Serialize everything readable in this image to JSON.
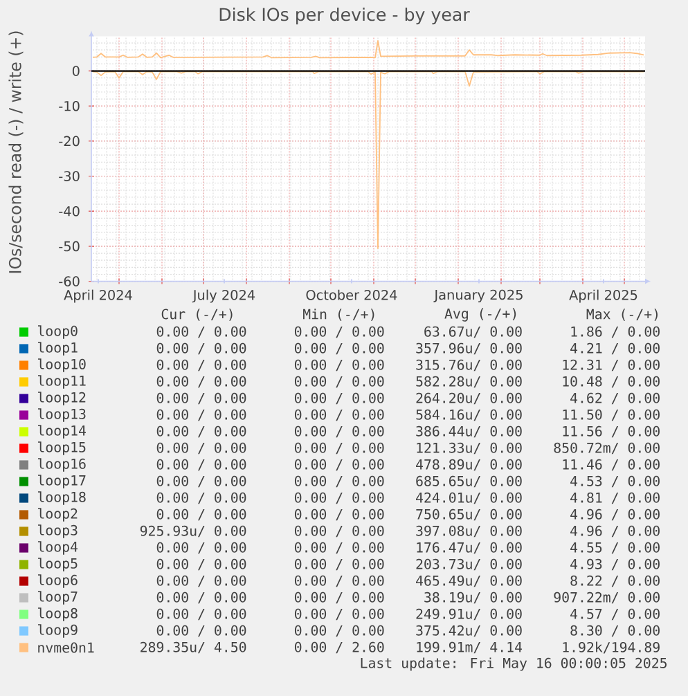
{
  "chart_data": {
    "type": "line",
    "title": "Disk IOs per device - by year",
    "ylabel": "IOs/second read (-) / write (+)",
    "xlim": [
      "2024-04-11",
      "2025-05-16"
    ],
    "ylim": [
      -60,
      9.9
    ],
    "yticks": [
      -60,
      -50,
      -40,
      -30,
      -20,
      -10,
      0
    ],
    "xticks": [
      {
        "value": "2024-04-16",
        "label": "April 2024"
      },
      {
        "value": "2024-05-01",
        "label": null
      },
      {
        "value": "2024-06-01",
        "label": null
      },
      {
        "value": "2024-07-01",
        "label": null
      },
      {
        "value": "2024-07-16",
        "label": "July 2024"
      },
      {
        "value": "2024-08-01",
        "label": null
      },
      {
        "value": "2024-09-01",
        "label": null
      },
      {
        "value": "2024-10-01",
        "label": null
      },
      {
        "value": "2024-10-16",
        "label": "October 2024"
      },
      {
        "value": "2024-11-01",
        "label": null
      },
      {
        "value": "2024-12-01",
        "label": null
      },
      {
        "value": "2025-01-01",
        "label": null
      },
      {
        "value": "2025-01-16",
        "label": "January 2025"
      },
      {
        "value": "2025-02-01",
        "label": null
      },
      {
        "value": "2025-03-01",
        "label": null
      },
      {
        "value": "2025-04-01",
        "label": null
      },
      {
        "value": "2025-04-16",
        "label": "April 2025"
      },
      {
        "value": "2025-05-01",
        "label": null
      }
    ],
    "grid": true,
    "legend": "bottom",
    "series": [
      {
        "name": "loop0",
        "color": "#00cc00"
      },
      {
        "name": "loop1",
        "color": "#0066b3"
      },
      {
        "name": "loop10",
        "color": "#ff8000"
      },
      {
        "name": "loop11",
        "color": "#ffcc00"
      },
      {
        "name": "loop12",
        "color": "#330099"
      },
      {
        "name": "loop13",
        "color": "#990099"
      },
      {
        "name": "loop14",
        "color": "#ccff00"
      },
      {
        "name": "loop15",
        "color": "#ff0000"
      },
      {
        "name": "loop16",
        "color": "#808080"
      },
      {
        "name": "loop17",
        "color": "#008f00"
      },
      {
        "name": "loop18",
        "color": "#00487d"
      },
      {
        "name": "loop2",
        "color": "#b35a00"
      },
      {
        "name": "loop3",
        "color": "#b38f00"
      },
      {
        "name": "loop4",
        "color": "#6b006b"
      },
      {
        "name": "loop5",
        "color": "#8fb300"
      },
      {
        "name": "loop6",
        "color": "#b30000"
      },
      {
        "name": "loop7",
        "color": "#bebebe"
      },
      {
        "name": "loop8",
        "color": "#80ff80"
      },
      {
        "name": "loop9",
        "color": "#80c9ff"
      },
      {
        "name": "nvme0n1",
        "color": "#ffc080",
        "x": [
          "2024-04-12",
          "2024-04-15",
          "2024-04-18",
          "2024-04-21",
          "2024-05-01",
          "2024-05-04",
          "2024-05-07",
          "2024-05-15",
          "2024-05-18",
          "2024-05-21",
          "2024-05-25",
          "2024-05-28",
          "2024-05-31",
          "2024-06-06",
          "2024-06-09",
          "2024-06-25",
          "2024-08-13",
          "2024-08-16",
          "2024-08-19",
          "2024-09-17",
          "2024-09-20",
          "2024-09-23",
          "2024-10-30",
          "2024-11-02",
          "2024-11-04",
          "2024-11-06",
          "2024-12-01",
          "2025-01-06",
          "2025-01-09",
          "2025-01-12",
          "2025-01-25",
          "2025-01-30",
          "2025-02-11",
          "2025-03-01",
          "2025-03-03",
          "2025-03-06",
          "2025-03-31",
          "2025-04-12",
          "2025-04-20",
          "2025-05-05",
          "2025-05-10",
          "2025-05-15"
        ],
        "values": [
          3.9,
          4.0,
          5.0,
          4.0,
          4.0,
          4.5,
          3.9,
          4.0,
          4.8,
          3.9,
          4.0,
          5.1,
          3.8,
          4.5,
          3.9,
          3.9,
          4.0,
          4.4,
          3.8,
          3.9,
          4.2,
          3.8,
          3.9,
          3.8,
          8.6,
          4.2,
          4.3,
          4.3,
          6.0,
          4.6,
          4.6,
          4.4,
          4.6,
          4.5,
          4.9,
          4.4,
          4.5,
          4.7,
          5.1,
          5.2,
          5.0,
          4.6
        ]
      },
      {
        "color": "#ffc080",
        "x": [
          "2024-04-12",
          "2024-04-15",
          "2024-04-18",
          "2024-04-21",
          "2024-04-28",
          "2024-05-01",
          "2024-05-04",
          "2024-05-15",
          "2024-05-18",
          "2024-05-21",
          "2024-05-25",
          "2024-05-28",
          "2024-05-31",
          "2024-06-12",
          "2024-06-15",
          "2024-06-18",
          "2024-06-25",
          "2024-06-27",
          "2024-06-30",
          "2024-09-18",
          "2024-09-19",
          "2024-09-22",
          "2024-10-28",
          "2024-10-30",
          "2024-11-02",
          "2024-11-04",
          "2024-11-06",
          "2024-11-09",
          "2024-11-12",
          "2024-12-13",
          "2024-12-14",
          "2024-12-17",
          "2025-01-06",
          "2025-01-09",
          "2025-01-12",
          "2025-02-27",
          "2025-03-01",
          "2025-03-04",
          "2025-03-27",
          "2025-03-29",
          "2025-04-01",
          "2025-05-15"
        ],
        "values": [
          -0.2,
          -0.3,
          -1.3,
          -0.3,
          -0.2,
          -2.0,
          -0.2,
          -0.2,
          -1.0,
          -0.2,
          -0.3,
          -2.4,
          -0.2,
          -0.2,
          -0.6,
          -0.2,
          -0.2,
          -0.8,
          -0.2,
          -0.2,
          -0.7,
          -0.2,
          -0.2,
          -0.9,
          -0.3,
          -50.6,
          -0.4,
          -0.8,
          -0.2,
          -0.2,
          -0.7,
          -0.2,
          -0.2,
          -4.3,
          -0.3,
          -0.2,
          -0.8,
          -0.2,
          -0.2,
          -0.6,
          -0.2,
          -0.2
        ]
      }
    ],
    "ref_lines": [
      {
        "axis": "y",
        "value": 0,
        "color": "#000000"
      }
    ],
    "annotations": [
      "Cur (-/+)",
      "Min (-/+)",
      "Avg (-/+)",
      "Max (-/+)",
      "0.00 / 0.00",
      "0.00 / 0.00",
      "63.67u/ 0.00",
      "1.86 / 0.00",
      "0.00 / 0.00",
      "0.00 / 0.00",
      "357.96u/ 0.00",
      "4.21 / 0.00",
      "0.00 / 0.00",
      "0.00 / 0.00",
      "315.76u/ 0.00",
      "12.31 / 0.00",
      "0.00 / 0.00",
      "0.00 / 0.00",
      "582.28u/ 0.00",
      "10.48 / 0.00",
      "0.00 / 0.00",
      "0.00 / 0.00",
      "264.20u/ 0.00",
      "4.62 / 0.00",
      "0.00 / 0.00",
      "0.00 / 0.00",
      "584.16u/ 0.00",
      "11.50 / 0.00",
      "0.00 / 0.00",
      "0.00 / 0.00",
      "386.44u/ 0.00",
      "11.56 / 0.00",
      "0.00 / 0.00",
      "0.00 / 0.00",
      "121.33u/ 0.00",
      "850.72m/ 0.00",
      "0.00 / 0.00",
      "0.00 / 0.00",
      "478.89u/ 0.00",
      "11.46 / 0.00",
      "0.00 / 0.00",
      "0.00 / 0.00",
      "685.65u/ 0.00",
      "4.53 / 0.00",
      "0.00 / 0.00",
      "0.00 / 0.00",
      "424.01u/ 0.00",
      "4.81 / 0.00",
      "0.00 / 0.00",
      "0.00 / 0.00",
      "750.65u/ 0.00",
      "4.96 / 0.00",
      "925.93u/ 0.00",
      "0.00 / 0.00",
      "397.08u/ 0.00",
      "4.96 / 0.00",
      "0.00 / 0.00",
      "0.00 / 0.00",
      "176.47u/ 0.00",
      "4.55 / 0.00",
      "0.00 / 0.00",
      "0.00 / 0.00",
      "203.73u/ 0.00",
      "4.93 / 0.00",
      "0.00 / 0.00",
      "0.00 / 0.00",
      "465.49u/ 0.00",
      "8.22 / 0.00",
      "0.00 / 0.00",
      "0.00 / 0.00",
      "38.19u/ 0.00",
      "907.22m/ 0.00",
      "0.00 / 0.00",
      "0.00 / 0.00",
      "249.91u/ 0.00",
      "4.57 / 0.00",
      "0.00 / 0.00",
      "0.00 / 0.00",
      "375.42u/ 0.00",
      "8.30 / 0.00",
      "289.35u/ 4.50",
      "0.00 / 2.60",
      "199.91m/ 4.14",
      "1.92k/194.89",
      "Last update: Fri May 16 00:00:05 2025"
    ]
  }
}
